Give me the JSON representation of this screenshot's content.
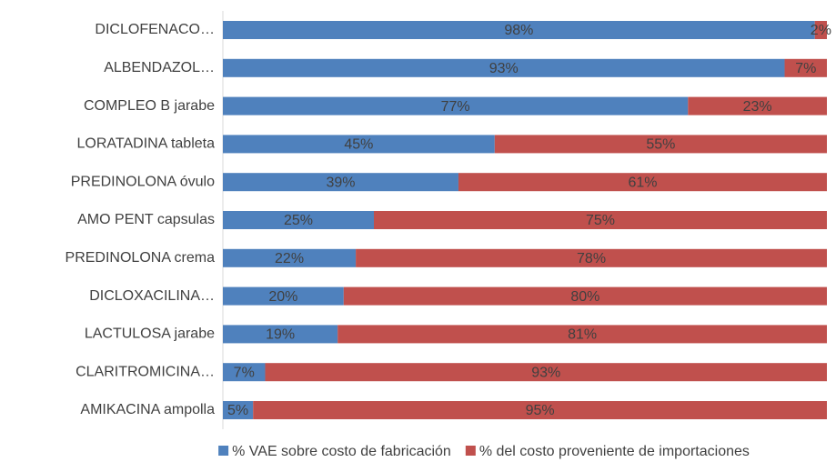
{
  "chart_data": {
    "type": "stacked_bar_horizontal",
    "categories": [
      "DICLOFENACO…",
      "ALBENDAZOL…",
      "COMPLEO B jarabe",
      "LORATADINA tableta",
      "PREDINOLONA óvulo",
      "AMO PENT capsulas",
      "PREDINOLONA crema",
      "DICLOXACILINA…",
      "LACTULOSA jarabe",
      "CLARITROMICINA…",
      "AMIKACINA ampolla"
    ],
    "xlim": [
      0,
      100
    ],
    "series": [
      {
        "name": "% VAE sobre costo de fabricación",
        "color": "#4f81bd",
        "values": [
          98,
          93,
          77,
          45,
          39,
          25,
          22,
          20,
          19,
          7,
          5
        ],
        "value_labels": [
          "98%",
          "93%",
          "77%",
          "45%",
          "39%",
          "25%",
          "22%",
          "20%",
          "19%",
          "7%",
          "5%"
        ]
      },
      {
        "name": "% del costo proveniente de importaciones",
        "color": "#c0504d",
        "values": [
          2,
          7,
          23,
          55,
          61,
          75,
          78,
          80,
          81,
          93,
          95
        ],
        "value_labels": [
          "2%",
          "7%",
          "23%",
          "55%",
          "61%",
          "75%",
          "78%",
          "80%",
          "81%",
          "93%",
          "95%"
        ]
      }
    ],
    "legend": "bottom"
  }
}
